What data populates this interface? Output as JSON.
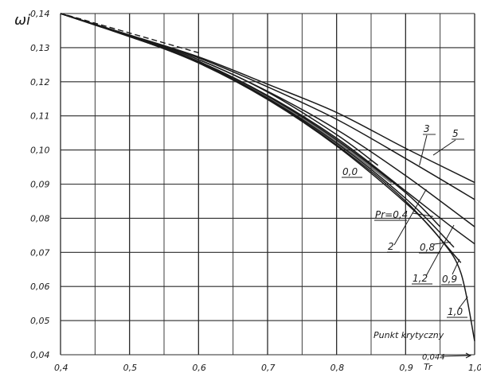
{
  "chart_data": {
    "type": "line",
    "title": "",
    "ylabel": "ωi",
    "xlabel": "Tr",
    "xlim": [
      0.4,
      1.0
    ],
    "ylim": [
      0.04,
      0.14
    ],
    "grid": true,
    "x_ticks": [
      {
        "value": 0.4,
        "label": "0,4"
      },
      {
        "value": 0.5,
        "label": "0,5"
      },
      {
        "value": 0.6,
        "label": "0,6"
      },
      {
        "value": 0.7,
        "label": "0,7"
      },
      {
        "value": 0.8,
        "label": "0,8"
      },
      {
        "value": 0.9,
        "label": "0,9"
      },
      {
        "value": 1.0,
        "label": "1,0"
      }
    ],
    "y_ticks": [
      {
        "value": 0.14,
        "label": "0,14"
      },
      {
        "value": 0.13,
        "label": "0,13"
      },
      {
        "value": 0.12,
        "label": "0,12"
      },
      {
        "value": 0.11,
        "label": "0,11"
      },
      {
        "value": 0.1,
        "label": "0,10"
      },
      {
        "value": 0.09,
        "label": "0,09"
      },
      {
        "value": 0.08,
        "label": "0,08"
      },
      {
        "value": 0.07,
        "label": "0,07"
      },
      {
        "value": 0.06,
        "label": "0,06"
      },
      {
        "value": 0.05,
        "label": "0,05"
      },
      {
        "value": 0.04,
        "label": "0,04"
      }
    ],
    "series": [
      {
        "name": "0,0",
        "x": [
          0.4,
          0.5,
          0.6,
          0.7,
          0.8,
          0.86
        ],
        "y": [
          0.14,
          0.1335,
          0.1265,
          0.117,
          0.1045,
          0.0955
        ]
      },
      {
        "name": "Pr=0,4",
        "x": [
          0.4,
          0.5,
          0.6,
          0.7,
          0.8,
          0.9,
          0.95
        ],
        "y": [
          0.14,
          0.1332,
          0.126,
          0.1158,
          0.103,
          0.0875,
          0.0775
        ]
      },
      {
        "name": "0,8",
        "x": [
          0.4,
          0.5,
          0.6,
          0.7,
          0.8,
          0.9,
          0.97
        ],
        "y": [
          0.14,
          0.1333,
          0.1258,
          0.1152,
          0.102,
          0.0858,
          0.0715
        ]
      },
      {
        "name": "0,9",
        "x": [
          0.4,
          0.5,
          0.6,
          0.7,
          0.8,
          0.9,
          0.98
        ],
        "y": [
          0.14,
          0.1333,
          0.1256,
          0.115,
          0.1015,
          0.085,
          0.067
        ]
      },
      {
        "name": "1,0",
        "x": [
          0.4,
          0.5,
          0.6,
          0.7,
          0.8,
          0.9,
          0.95,
          0.98,
          1.0
        ],
        "y": [
          0.14,
          0.1333,
          0.1255,
          0.1148,
          0.1012,
          0.0845,
          0.074,
          0.064,
          0.044
        ]
      },
      {
        "name": "1,2",
        "x": [
          0.4,
          0.5,
          0.6,
          0.7,
          0.8,
          0.9,
          0.96,
          1.0
        ],
        "y": [
          0.14,
          0.1334,
          0.126,
          0.116,
          0.1035,
          0.088,
          0.0785,
          0.0725
        ]
      },
      {
        "name": "2",
        "x": [
          0.4,
          0.5,
          0.6,
          0.7,
          0.8,
          0.9,
          1.0
        ],
        "y": [
          0.14,
          0.1335,
          0.1265,
          0.1172,
          0.106,
          0.0925,
          0.0775
        ]
      },
      {
        "name": "3",
        "x": [
          0.4,
          0.5,
          0.6,
          0.7,
          0.8,
          0.9,
          1.0
        ],
        "y": [
          0.14,
          0.1336,
          0.127,
          0.1185,
          0.109,
          0.0975,
          0.0855
        ]
      },
      {
        "name": "5",
        "x": [
          0.4,
          0.5,
          0.6,
          0.7,
          0.8,
          0.9,
          1.0
        ],
        "y": [
          0.14,
          0.1337,
          0.1273,
          0.1193,
          0.111,
          0.1005,
          0.0905
        ]
      }
    ],
    "annotations": {
      "critical_point_label": "Punkt krytyczny",
      "critical_point_value": "0,044"
    },
    "stroke_color": "#1a1a1a",
    "grid_color": "#2a2a2a"
  }
}
